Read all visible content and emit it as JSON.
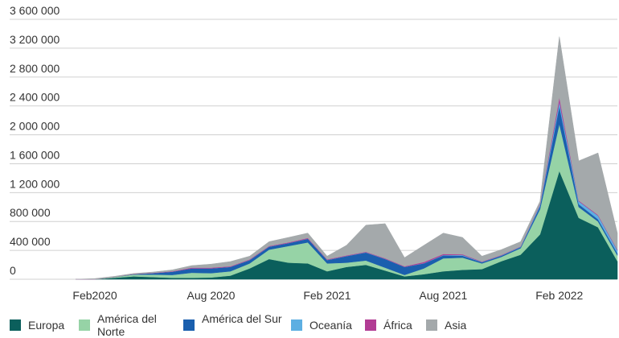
{
  "chart_data": {
    "type": "stacked_area",
    "categories": [
      null,
      "Feb2020",
      null,
      null,
      null,
      null,
      null,
      "Aug 2020",
      null,
      null,
      null,
      null,
      null,
      "Feb 2021",
      null,
      null,
      null,
      null,
      null,
      "Aug 2021",
      null,
      null,
      null,
      null,
      null,
      "Feb 2022",
      null,
      null,
      null
    ],
    "series": [
      {
        "name": "Europa",
        "color": "#0b5f5c",
        "values": [
          0,
          0,
          20000,
          40000,
          30000,
          20000,
          20000,
          25000,
          50000,
          150000,
          280000,
          230000,
          220000,
          110000,
          170000,
          200000,
          120000,
          40000,
          70000,
          110000,
          130000,
          140000,
          250000,
          340000,
          620000,
          1500000,
          850000,
          720000,
          250000
        ]
      },
      {
        "name": "América del Norte",
        "color": "#96d3a6",
        "values": [
          0,
          0,
          10000,
          25000,
          35000,
          40000,
          70000,
          60000,
          60000,
          70000,
          130000,
          230000,
          290000,
          110000,
          60000,
          60000,
          40000,
          20000,
          80000,
          180000,
          170000,
          80000,
          60000,
          90000,
          350000,
          650000,
          150000,
          80000,
          80000
        ]
      },
      {
        "name": "América del Sur",
        "color": "#1a5fae",
        "values": [
          0,
          0,
          0,
          5000,
          20000,
          45000,
          60000,
          65000,
          60000,
          45000,
          40000,
          40000,
          50000,
          45000,
          90000,
          110000,
          120000,
          110000,
          70000,
          40000,
          25000,
          15000,
          15000,
          15000,
          40000,
          250000,
          40000,
          30000,
          30000
        ]
      },
      {
        "name": "Oceanía",
        "color": "#5dafe2",
        "values": [
          0,
          0,
          0,
          0,
          0,
          0,
          0,
          0,
          2000,
          2000,
          3000,
          2000,
          2000,
          2000,
          2000,
          3000,
          2000,
          2000,
          3000,
          5000,
          10000,
          5000,
          5000,
          5000,
          20000,
          60000,
          40000,
          50000,
          40000
        ]
      },
      {
        "name": "África",
        "color": "#b23c94",
        "values": [
          0,
          0,
          0,
          2000,
          3000,
          5000,
          10000,
          10000,
          8000,
          8000,
          7000,
          8000,
          10000,
          8000,
          8000,
          7000,
          8000,
          8000,
          15000,
          15000,
          10000,
          5000,
          5000,
          5000,
          10000,
          60000,
          10000,
          10000,
          10000
        ]
      },
      {
        "name": "Asia",
        "color": "#a4a9ab",
        "values": [
          0,
          10000,
          10000,
          8000,
          12000,
          20000,
          30000,
          50000,
          65000,
          45000,
          60000,
          70000,
          68000,
          45000,
          140000,
          370000,
          480000,
          120000,
          232000,
          290000,
          235000,
          75000,
          75000,
          65000,
          40000,
          840000,
          550000,
          860000,
          230000
        ]
      }
    ],
    "ylim": [
      0,
      3600000
    ],
    "yticks": [
      0,
      {
        "value": 400000,
        "label": "400 000"
      },
      {
        "value": 800000,
        "label": "800 000"
      },
      {
        "value": 1200000,
        "label": "1 200 000"
      },
      {
        "value": 1600000,
        "label": "1 600 000"
      },
      {
        "value": 2000000,
        "label": "2 000 000"
      },
      {
        "value": 2400000,
        "label": "2 400 000"
      },
      {
        "value": 2800000,
        "label": "2 800 000"
      },
      {
        "value": 3200000,
        "label": "3 200 000"
      },
      {
        "value": 3600000,
        "label": "3 600 000"
      }
    ],
    "grid": true
  }
}
